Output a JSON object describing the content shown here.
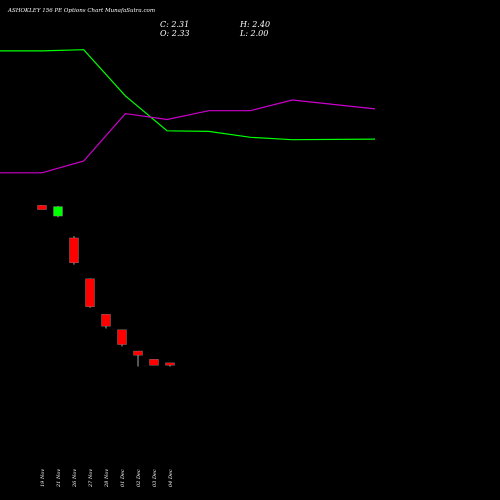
{
  "title": "ASHOKLEY 156 PE Options Chart MunafaSutra.com",
  "ohlc": {
    "c": "C: 2.31",
    "h": "H: 2.40",
    "o": "O: 2.33",
    "l": "L: 2.00"
  },
  "chart_data": {
    "type": "candlestick",
    "categories": [
      "19 Nov",
      "21 Nov",
      "26 Nov",
      "27 Nov",
      "28 Nov",
      "01 Dec",
      "02 Dec",
      "03 Dec",
      "04 Dec"
    ],
    "candles": [
      {
        "open": 15.0,
        "high": 15.0,
        "low": 14.3,
        "close": 14.3,
        "color": "#ff0000"
      },
      {
        "open": 13.2,
        "high": 14.9,
        "low": 13.0,
        "close": 14.8,
        "color": "#00ff00"
      },
      {
        "open": 9.5,
        "high": 9.8,
        "low": 5.0,
        "close": 5.3,
        "color": "#ff0000"
      },
      {
        "open": 2.6,
        "high": 2.7,
        "low": -2.3,
        "close": -2.1,
        "color": "#ff0000"
      },
      {
        "open": -3.4,
        "high": -3.4,
        "low": -5.8,
        "close": -5.4,
        "color": "#ff0000"
      },
      {
        "open": -6.0,
        "high": -6.2,
        "low": -8.8,
        "close": -8.5,
        "color": "#ff0000"
      },
      {
        "open": -9.6,
        "high": -9.6,
        "low": -12.2,
        "close": -10.3,
        "color": "#ff0000"
      },
      {
        "open": -11.0,
        "high": -11.0,
        "low": -12.0,
        "close": -12.0,
        "color": "#ff0000"
      },
      {
        "open": -11.6,
        "high": -11.6,
        "low": -12.2,
        "close": -12.0,
        "color": "#ff0000"
      }
    ],
    "series": [
      {
        "color": "#00ff00",
        "values": [
          41.1,
          41.1,
          41.3,
          33.5,
          27.6,
          27.5,
          26.5,
          26.1,
          26.2
        ]
      },
      {
        "color": "#cc00cc",
        "values": [
          20.5,
          20.5,
          22.5,
          30.5,
          29.5,
          31.0,
          31.0,
          32.8,
          31.3
        ]
      }
    ],
    "ylim": [
      -28,
      48
    ],
    "grid": false,
    "legend": "none"
  }
}
